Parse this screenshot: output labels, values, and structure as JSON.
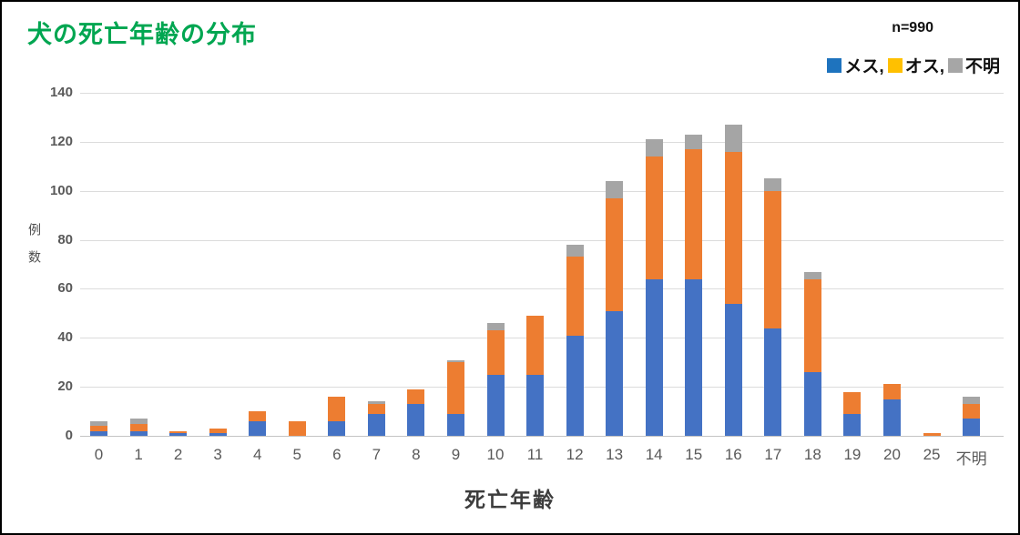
{
  "chart_data": {
    "type": "bar",
    "stacked": true,
    "title": "犬の死亡年齢の分布",
    "title_color": "#00A651",
    "n_label": "n=990",
    "xlabel": "死亡年齢",
    "ylabel": "例数",
    "categories": [
      "0",
      "1",
      "2",
      "3",
      "4",
      "5",
      "6",
      "7",
      "8",
      "9",
      "10",
      "11",
      "12",
      "13",
      "14",
      "15",
      "16",
      "17",
      "18",
      "19",
      "20",
      "25",
      "不明"
    ],
    "series": [
      {
        "name": "メス",
        "color": "#4472C4",
        "values": [
          2,
          2,
          1,
          1,
          6,
          0,
          6,
          9,
          13,
          9,
          25,
          25,
          41,
          51,
          64,
          64,
          54,
          44,
          26,
          9,
          15,
          0,
          7
        ]
      },
      {
        "name": "オス",
        "color": "#ED7D31",
        "values": [
          2,
          3,
          1,
          2,
          4,
          6,
          10,
          4,
          6,
          21,
          18,
          24,
          32,
          46,
          50,
          53,
          62,
          56,
          38,
          9,
          6,
          1,
          6
        ]
      },
      {
        "name": "不明",
        "color": "#A5A5A5",
        "values": [
          2,
          2,
          0,
          0,
          0,
          0,
          0,
          1,
          0,
          1,
          3,
          0,
          5,
          7,
          7,
          6,
          11,
          5,
          3,
          0,
          0,
          0,
          3
        ]
      }
    ],
    "category_totals": [
      6,
      7,
      2,
      3,
      10,
      6,
      16,
      14,
      19,
      31,
      46,
      49,
      78,
      104,
      121,
      123,
      127,
      105,
      67,
      18,
      21,
      1,
      16
    ],
    "ylim": [
      0,
      140
    ],
    "ytick_step": 20,
    "yticks": [
      0,
      20,
      40,
      60,
      80,
      100,
      120,
      140
    ],
    "grid": true,
    "legend": {
      "position": "top-right",
      "items": [
        {
          "label": "メス,",
          "swatch": "#1E73BE"
        },
        {
          "label": "オス,",
          "swatch": "#FFC000"
        },
        {
          "label": "不明",
          "swatch": "#A6A6A6"
        }
      ]
    }
  }
}
